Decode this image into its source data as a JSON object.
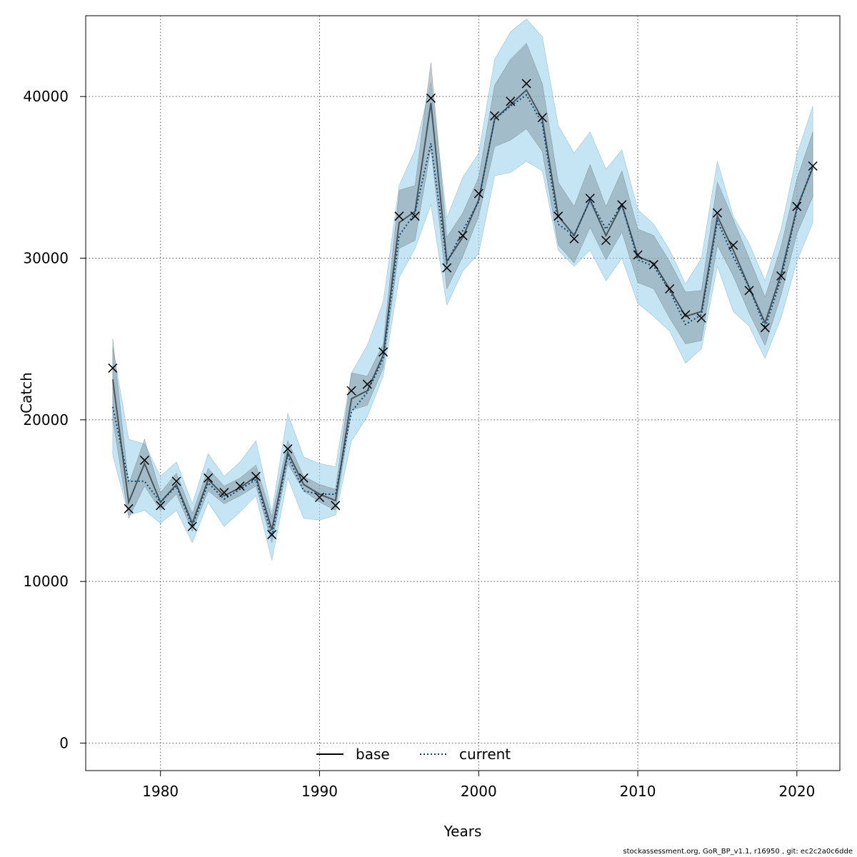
{
  "colors": {
    "outer_band": "#9fd4ef",
    "inner_band": "#7a8a94",
    "base_line": "#000000",
    "current_line": "#0a4a78",
    "grid": "#555555"
  },
  "chart_data": {
    "type": "line",
    "xlabel": "Years",
    "ylabel": "Catch",
    "xlim": [
      1975.3,
      2022.7
    ],
    "ylim": [
      -1700,
      45000
    ],
    "x_ticks": [
      1980,
      1990,
      2000,
      2010,
      2020
    ],
    "y_ticks": [
      0,
      10000,
      20000,
      30000,
      40000
    ],
    "grid": true,
    "legend_position": "bottom-center",
    "legend": [
      "base",
      "current"
    ],
    "x": [
      1977,
      1978,
      1979,
      1980,
      1981,
      1982,
      1983,
      1984,
      1985,
      1986,
      1987,
      1988,
      1989,
      1990,
      1991,
      1992,
      1993,
      1994,
      1995,
      1996,
      1997,
      1998,
      1999,
      2000,
      2001,
      2002,
      2003,
      2004,
      2005,
      2006,
      2007,
      2008,
      2009,
      2010,
      2011,
      2012,
      2013,
      2014,
      2015,
      2016,
      2017,
      2018,
      2019,
      2020,
      2021
    ],
    "series": [
      {
        "name": "base",
        "style": "solid",
        "values": [
          22500,
          14900,
          17300,
          14900,
          16000,
          13600,
          16300,
          15300,
          15800,
          16500,
          13200,
          18000,
          16000,
          15400,
          15000,
          21300,
          21800,
          24000,
          32200,
          32900,
          39600,
          29800,
          31300,
          33600,
          38600,
          39500,
          40400,
          38600,
          32600,
          31400,
          33600,
          31400,
          33300,
          30100,
          29700,
          28100,
          26400,
          26700,
          32600,
          30500,
          28200,
          26000,
          29000,
          33100,
          35600
        ],
        "lower_inner": [
          20000,
          13900,
          15900,
          14400,
          15400,
          13100,
          15600,
          14800,
          15300,
          15900,
          12400,
          17300,
          15600,
          14900,
          14400,
          20600,
          20900,
          23200,
          30600,
          31100,
          36800,
          28100,
          30100,
          32600,
          36900,
          37300,
          38000,
          36600,
          30800,
          29700,
          31900,
          29900,
          31600,
          28500,
          28100,
          26300,
          24700,
          24900,
          30800,
          28900,
          26600,
          24600,
          27700,
          31500,
          33800
        ],
        "upper_inner": [
          25000,
          16000,
          18800,
          15500,
          16700,
          14200,
          17000,
          15900,
          16400,
          17200,
          14000,
          18700,
          16500,
          16000,
          15700,
          22900,
          22700,
          24700,
          34200,
          34500,
          42100,
          31300,
          32800,
          35000,
          40700,
          42300,
          43300,
          40800,
          34700,
          33200,
          35800,
          33200,
          35400,
          31800,
          31400,
          29800,
          27900,
          28000,
          34700,
          32400,
          30000,
          27600,
          30700,
          34900,
          37800
        ],
        "markers": [
          23200,
          14500,
          17500,
          14700,
          16200,
          13400,
          16400,
          15500,
          15900,
          16500,
          12900,
          18200,
          16400,
          15200,
          14700,
          21800,
          22200,
          24200,
          32600,
          32600,
          39900,
          29400,
          31400,
          34000,
          38800,
          39700,
          40800,
          38700,
          32600,
          31200,
          33700,
          31100,
          33300,
          30200,
          29600,
          28100,
          26500,
          26300,
          32800,
          30800,
          28000,
          25700,
          28900,
          33200,
          35700
        ]
      },
      {
        "name": "current",
        "style": "dotted",
        "values": [
          20800,
          16200,
          16200,
          14900,
          15900,
          13400,
          16100,
          15100,
          15700,
          16300,
          12800,
          17800,
          15600,
          15400,
          15400,
          20500,
          21700,
          23800,
          31400,
          32800,
          37100,
          29700,
          31700,
          33500,
          38600,
          39400,
          40100,
          38300,
          32100,
          31400,
          33600,
          31800,
          33300,
          29900,
          29500,
          28000,
          25900,
          26500,
          32300,
          30100,
          28200,
          25700,
          28700,
          33000,
          35700
        ],
        "lower_outer": [
          17800,
          14100,
          14400,
          13600,
          14400,
          12400,
          14900,
          13400,
          14300,
          15300,
          11300,
          16400,
          13900,
          13800,
          14100,
          18700,
          20200,
          22700,
          28800,
          30600,
          33300,
          27100,
          29200,
          30300,
          35100,
          35300,
          36000,
          35400,
          30500,
          29500,
          30500,
          28600,
          30000,
          27200,
          26400,
          25500,
          23500,
          24400,
          29500,
          26700,
          25800,
          23800,
          26300,
          29800,
          32200
        ],
        "upper_outer": [
          24500,
          18800,
          18500,
          16500,
          17400,
          14800,
          17900,
          16500,
          17400,
          18700,
          14300,
          20400,
          17700,
          17300,
          17100,
          22900,
          24600,
          27300,
          34500,
          36700,
          40900,
          32500,
          35000,
          36500,
          42300,
          44000,
          44800,
          43700,
          38200,
          36500,
          37800,
          35500,
          36700,
          33000,
          32100,
          30500,
          28400,
          30000,
          36000,
          32600,
          30900,
          28600,
          31800,
          36400,
          39400
        ]
      }
    ]
  },
  "footer": "stockassessment.org, GoR_BP_v1.1, r16950 , git: ec2c2a0c6dde"
}
